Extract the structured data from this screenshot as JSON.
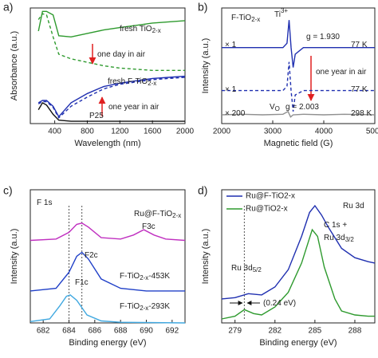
{
  "chart_data": [
    {
      "type": "line",
      "panel_label": "a)",
      "xlabel": "Wavelength (nm)",
      "ylabel": "Absorbance (a.u.)",
      "xlim": [
        100,
        2000
      ],
      "ylim": [
        0,
        10
      ],
      "xticks": [
        400,
        800,
        1200,
        1600,
        2000
      ],
      "series": [
        {
          "color": "#2e9a2e",
          "dash": false,
          "x": [
            200,
            250,
            300,
            380,
            450,
            600,
            800,
            1000,
            1200,
            1400,
            1600,
            1800,
            2000
          ],
          "values": [
            8,
            9.7,
            9.7,
            9.4,
            7.6,
            7.5,
            7.8,
            8.1,
            8.3,
            8.5,
            8.7,
            8.8,
            8.9
          ]
        },
        {
          "color": "#2e9a2e",
          "dash": true,
          "x": [
            200,
            250,
            300,
            380,
            450,
            600,
            800,
            1000,
            1200,
            1400,
            1600,
            1800,
            2000
          ],
          "values": [
            9,
            9.5,
            9.4,
            7.5,
            6.0,
            5.6,
            5.3,
            5.0,
            4.8,
            4.7,
            4.6,
            4.6,
            4.6
          ]
        },
        {
          "color": "#1f2fb0",
          "dash": false,
          "x": [
            200,
            250,
            300,
            380,
            450,
            600,
            800,
            1000,
            1200,
            1400,
            1600,
            1800,
            2000
          ],
          "values": [
            1.8,
            2.0,
            2.0,
            1.5,
            0.6,
            1.8,
            2.6,
            3.2,
            3.5,
            3.7,
            3.9,
            4.0,
            4.1
          ]
        },
        {
          "color": "#1f2fb0",
          "dash": true,
          "x": [
            200,
            250,
            300,
            380,
            450,
            600,
            800,
            1000,
            1200,
            1400,
            1600,
            1800,
            2000
          ],
          "values": [
            1.7,
            1.9,
            1.9,
            1.4,
            0.5,
            1.5,
            2.3,
            3.0,
            3.4,
            3.6,
            3.8,
            3.9,
            4.0
          ]
        },
        {
          "color": "#111111",
          "dash": false,
          "x": [
            200,
            250,
            300,
            380,
            450,
            600,
            800,
            1000,
            1200,
            1400,
            1600,
            1800,
            2000
          ],
          "values": [
            1.2,
            1.8,
            1.6,
            0.8,
            0.3,
            0.2,
            0.2,
            0.2,
            0.2,
            0.2,
            0.2,
            0.2,
            0.2
          ]
        }
      ],
      "annotations": [
        {
          "text": "fresh TiO",
          "sub": "2-x",
          "color": "#2e9a2e"
        },
        {
          "text": "one day in air",
          "color": "#111111"
        },
        {
          "text": "fresh F-TiO",
          "sub": "2-x",
          "color": "#1f2fb0"
        },
        {
          "text": "one year in air",
          "color": "#111111"
        },
        {
          "text": "P25",
          "color": "#111111"
        }
      ]
    },
    {
      "type": "line",
      "panel_label": "b)",
      "xlabel": "Magnetic field (G)",
      "ylabel": "Intensity (a.u.)",
      "xlim": [
        2000,
        5000
      ],
      "ylim": [
        -0.5,
        10
      ],
      "xticks": [
        2000,
        3000,
        4000,
        5000
      ],
      "series": [
        {
          "color": "#1f2fb0",
          "dash": false,
          "x": [
            2000,
            3200,
            3280,
            3320,
            3360,
            3400,
            3440,
            3600,
            5000
          ],
          "values": [
            6.4,
            6.4,
            6.8,
            8.9,
            6.4,
            4.6,
            5.8,
            6.4,
            6.4
          ]
        },
        {
          "color": "#1f2fb0",
          "dash": true,
          "x": [
            2000,
            3200,
            3280,
            3320,
            3360,
            3400,
            3440,
            3600,
            5000
          ],
          "values": [
            2.5,
            2.5,
            2.9,
            5.1,
            2.5,
            0.6,
            2.1,
            2.5,
            2.5
          ]
        },
        {
          "color": "#909090",
          "dash": false,
          "x": [
            2000,
            2400,
            2800,
            3200,
            3300,
            3350,
            3400,
            3600,
            4000,
            4400,
            5000
          ],
          "values": [
            0.3,
            0.35,
            0.3,
            0.35,
            0.6,
            0.1,
            0.3,
            0.35,
            0.3,
            0.35,
            0.3
          ]
        }
      ],
      "annotations": [
        {
          "text": "F-TiO",
          "sub": "2-x",
          "color": "#111111"
        },
        {
          "text": "Ti",
          "sup": "3+",
          "color": "#111111"
        },
        {
          "text": "g = 1.930",
          "color": "#111111"
        },
        {
          "text": "77 K",
          "color": "#111111"
        },
        {
          "text": "× 1",
          "color": "#111111"
        },
        {
          "text": "one year in air",
          "color": "#111111"
        },
        {
          "text": "77 K",
          "color": "#111111"
        },
        {
          "text": "× 1",
          "color": "#111111"
        },
        {
          "text": "× 200",
          "color": "#111111"
        },
        {
          "text": "V",
          "sub": "O",
          "color": "#111111"
        },
        {
          "text": "g = 2.003",
          "color": "#111111"
        },
        {
          "text": "298 K",
          "color": "#909090"
        }
      ]
    },
    {
      "type": "line",
      "panel_label": "c)",
      "xlabel": "Binding energy (eV)",
      "ylabel": "Intensity (a.u.)",
      "xlim": [
        681,
        693
      ],
      "ylim": [
        0,
        10
      ],
      "xticks": [
        682,
        684,
        686,
        688,
        690,
        692
      ],
      "vlines": [
        685,
        684
      ],
      "series": [
        {
          "color": "#c030c0",
          "dash": false,
          "x": [
            681,
            683,
            684,
            684.6,
            685,
            685.5,
            686.5,
            688,
            689,
            689.8,
            690.6,
            691.5,
            693
          ],
          "values": [
            6.2,
            6.3,
            6.8,
            7.4,
            7.5,
            7.2,
            6.4,
            6.3,
            6.6,
            7.0,
            6.6,
            6.3,
            6.2
          ]
        },
        {
          "color": "#2040c8",
          "dash": false,
          "x": [
            681,
            683,
            684,
            684.6,
            685,
            685.5,
            686.5,
            688,
            690,
            693
          ],
          "values": [
            2.4,
            2.6,
            3.8,
            5.0,
            5.3,
            4.8,
            3.3,
            2.6,
            2.4,
            2.4
          ]
        },
        {
          "color": "#40a8e0",
          "dash": false,
          "x": [
            681,
            682.5,
            683.3,
            683.8,
            684.1,
            684.6,
            685.4,
            686.5,
            688,
            693
          ],
          "values": [
            0.1,
            0.3,
            1.3,
            2.0,
            2.1,
            1.7,
            0.6,
            0.15,
            0.05,
            0
          ]
        }
      ],
      "annotations": [
        {
          "text": "F 1s",
          "color": "#111111"
        },
        {
          "text": "Ru@F-TiO",
          "sub": "2-x",
          "color": "#111111"
        },
        {
          "text": "F3c",
          "color": "#111111"
        },
        {
          "text": "F2c",
          "color": "#111111"
        },
        {
          "text": "F-TiO",
          "sub": "2-x",
          "after": "-453K",
          "color": "#111111"
        },
        {
          "text": "F1c",
          "color": "#111111"
        },
        {
          "text": "F-TiO",
          "sub": "2-x",
          "after": "-293K",
          "color": "#111111"
        }
      ]
    },
    {
      "type": "line",
      "panel_label": "d)",
      "xlabel": "Binding energy (eV)",
      "ylabel": "Intensity (a.u.)",
      "xlim": [
        278,
        289.5
      ],
      "ylim": [
        0,
        10
      ],
      "xticks": [
        279,
        282,
        285,
        288
      ],
      "vlines": [
        279.7
      ],
      "legend": "top-left",
      "series": [
        {
          "name": "Ru@F-TiO2-x",
          "color": "#1f2fb0",
          "dash": false,
          "x": [
            278,
            279,
            280,
            281,
            282,
            283,
            284,
            284.6,
            285,
            285.5,
            286,
            287,
            288,
            289,
            289.5
          ],
          "values": [
            1.8,
            1.9,
            2.2,
            2.1,
            2.7,
            4.0,
            6.5,
            8.3,
            8.8,
            8.1,
            7.2,
            5.6,
            4.9,
            4.6,
            4.5
          ]
        },
        {
          "name": "Ru@TiO2-x",
          "color": "#2e9a2e",
          "dash": false,
          "x": [
            278,
            279,
            279.7,
            280.4,
            281,
            282,
            283,
            284,
            284.8,
            285.2,
            285.7,
            286.5,
            287,
            288,
            289,
            289.5
          ],
          "values": [
            0.3,
            0.5,
            1.0,
            0.7,
            0.6,
            1.2,
            2.3,
            4.5,
            7.0,
            6.5,
            4.2,
            1.8,
            0.9,
            0.6,
            0.5,
            0.5
          ]
        }
      ],
      "annotations": [
        {
          "text": "Ru 3d",
          "color": "#111111"
        },
        {
          "text": "C 1s +",
          "color": "#111111"
        },
        {
          "text": "Ru 3d",
          "sub": "3/2",
          "color": "#111111"
        },
        {
          "text": "Ru 3d",
          "sub": "5/2",
          "color": "#111111"
        },
        {
          "text": "(0.24 eV)",
          "color": "#d02020"
        }
      ]
    }
  ]
}
